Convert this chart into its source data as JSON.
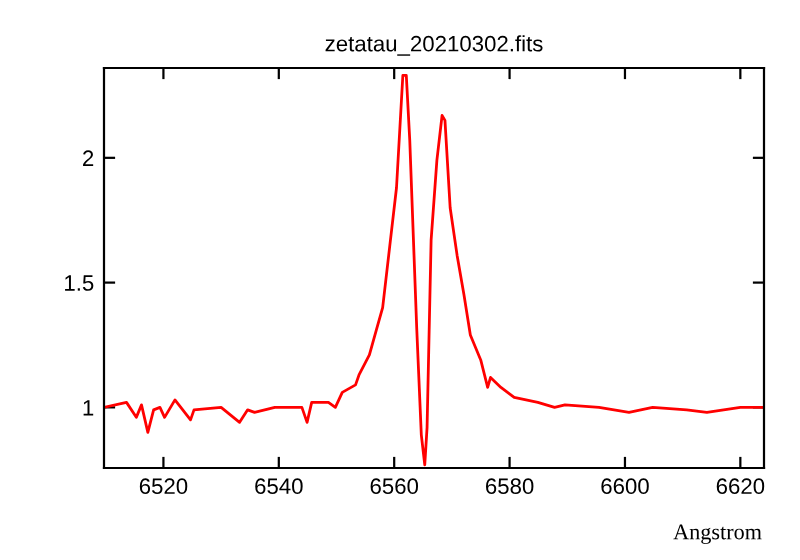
{
  "chart_data": {
    "type": "line",
    "title": "zetatau_20210302.fits",
    "xlabel": "Angstrom",
    "xlim": [
      6509.7,
      6624.1
    ],
    "ylim": [
      0.757,
      2.36
    ],
    "xticks": [
      6520,
      6540,
      6560,
      6580,
      6600,
      6620
    ],
    "yticks": [
      1,
      1.5,
      2
    ],
    "grid": false,
    "series": [
      {
        "color": "#ff0000",
        "x": [
          6509.7,
          6513.6,
          6515.3,
          6516.2,
          6517.3,
          6518.3,
          6519.4,
          6520.2,
          6522,
          6524.7,
          6525.3,
          6530,
          6533.2,
          6534.6,
          6535.8,
          6539.3,
          6544,
          6544.9,
          6545.7,
          6548.6,
          6549.8,
          6551,
          6553.3,
          6553.9,
          6555.7,
          6556.9,
          6558,
          6559.2,
          6560.4,
          6561.5,
          6562.1,
          6562.7,
          6563.9,
          6564.7,
          6565.3,
          6565.7,
          6566.4,
          6567.4,
          6568.3,
          6568.8,
          6569.7,
          6570.9,
          6572.1,
          6573.2,
          6575,
          6576.2,
          6576.7,
          6578.5,
          6580.8,
          6584.9,
          6587.8,
          6589.6,
          6595.5,
          6600.7,
          6604.8,
          6610.7,
          6614.2,
          6620,
          6624
        ],
        "values": [
          1.0,
          1.02,
          0.96,
          1.01,
          0.9,
          0.99,
          1.0,
          0.96,
          1.03,
          0.95,
          0.99,
          1.0,
          0.94,
          0.99,
          0.98,
          1.0,
          1.0,
          0.94,
          1.02,
          1.02,
          1.0,
          1.06,
          1.09,
          1.13,
          1.21,
          1.31,
          1.4,
          1.64,
          1.88,
          2.33,
          2.33,
          2.07,
          1.32,
          0.89,
          0.77,
          0.92,
          1.67,
          1.99,
          2.17,
          2.15,
          1.8,
          1.61,
          1.45,
          1.29,
          1.19,
          1.08,
          1.12,
          1.08,
          1.04,
          1.02,
          1.0,
          1.01,
          1.0,
          0.98,
          1.0,
          0.99,
          0.98,
          1.0,
          1.0
        ]
      }
    ]
  }
}
